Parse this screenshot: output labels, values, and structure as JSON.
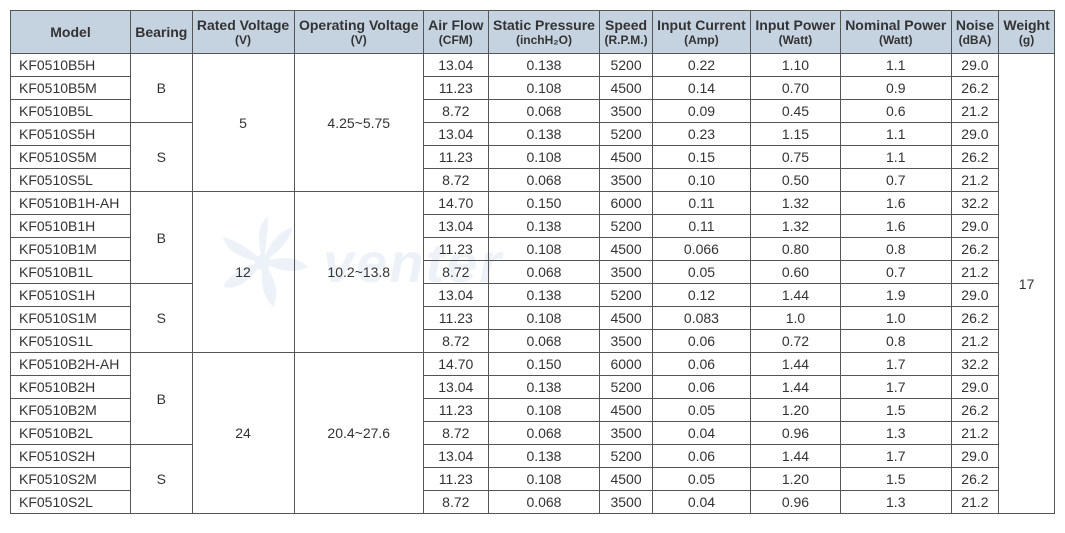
{
  "headers": {
    "model": "Model",
    "bearing": "Bearing",
    "rated_voltage": "Rated Voltage",
    "rated_voltage_unit": "(V)",
    "operating_voltage": "Operating Voltage",
    "operating_voltage_unit": "(V)",
    "air_flow": "Air Flow",
    "air_flow_unit": "(CFM)",
    "static_pressure": "Static Pressure",
    "static_pressure_unit": "(inchH₂O)",
    "speed": "Speed",
    "speed_unit": "(R.P.M.)",
    "input_current": "Input Current",
    "input_current_unit": "(Amp)",
    "input_power": "Input Power",
    "input_power_unit": "(Watt)",
    "nominal_power": "Nominal Power",
    "nominal_power_unit": "(Watt)",
    "noise": "Noise",
    "noise_unit": "(dBA)",
    "weight": "Weight",
    "weight_unit": "(g)"
  },
  "groups": [
    {
      "rated_voltage": "5",
      "operating_voltage": "4.25~5.75",
      "bearings": [
        {
          "bearing": "B",
          "rows": [
            {
              "model": "KF0510B5H",
              "air_flow": "13.04",
              "static_pressure": "0.138",
              "speed": "5200",
              "input_current": "0.22",
              "input_power": "1.10",
              "nominal_power": "1.1",
              "noise": "29.0"
            },
            {
              "model": "KF0510B5M",
              "air_flow": "11.23",
              "static_pressure": "0.108",
              "speed": "4500",
              "input_current": "0.14",
              "input_power": "0.70",
              "nominal_power": "0.9",
              "noise": "26.2"
            },
            {
              "model": "KF0510B5L",
              "air_flow": "8.72",
              "static_pressure": "0.068",
              "speed": "3500",
              "input_current": "0.09",
              "input_power": "0.45",
              "nominal_power": "0.6",
              "noise": "21.2"
            }
          ]
        },
        {
          "bearing": "S",
          "rows": [
            {
              "model": "KF0510S5H",
              "air_flow": "13.04",
              "static_pressure": "0.138",
              "speed": "5200",
              "input_current": "0.23",
              "input_power": "1.15",
              "nominal_power": "1.1",
              "noise": "29.0"
            },
            {
              "model": "KF0510S5M",
              "air_flow": "11.23",
              "static_pressure": "0.108",
              "speed": "4500",
              "input_current": "0.15",
              "input_power": "0.75",
              "nominal_power": "1.1",
              "noise": "26.2"
            },
            {
              "model": "KF0510S5L",
              "air_flow": "8.72",
              "static_pressure": "0.068",
              "speed": "3500",
              "input_current": "0.10",
              "input_power": "0.50",
              "nominal_power": "0.7",
              "noise": "21.2"
            }
          ]
        }
      ]
    },
    {
      "rated_voltage": "12",
      "operating_voltage": "10.2~13.8",
      "bearings": [
        {
          "bearing": "B",
          "rows": [
            {
              "model": "KF0510B1H-AH",
              "air_flow": "14.70",
              "static_pressure": "0.150",
              "speed": "6000",
              "input_current": "0.11",
              "input_power": "1.32",
              "nominal_power": "1.6",
              "noise": "32.2"
            },
            {
              "model": "KF0510B1H",
              "air_flow": "13.04",
              "static_pressure": "0.138",
              "speed": "5200",
              "input_current": "0.11",
              "input_power": "1.32",
              "nominal_power": "1.6",
              "noise": "29.0"
            },
            {
              "model": "KF0510B1M",
              "air_flow": "11.23",
              "static_pressure": "0.108",
              "speed": "4500",
              "input_current": "0.066",
              "input_power": "0.80",
              "nominal_power": "0.8",
              "noise": "26.2"
            },
            {
              "model": "KF0510B1L",
              "air_flow": "8.72",
              "static_pressure": "0.068",
              "speed": "3500",
              "input_current": "0.05",
              "input_power": "0.60",
              "nominal_power": "0.7",
              "noise": "21.2"
            }
          ]
        },
        {
          "bearing": "S",
          "rows": [
            {
              "model": "KF0510S1H",
              "air_flow": "13.04",
              "static_pressure": "0.138",
              "speed": "5200",
              "input_current": "0.12",
              "input_power": "1.44",
              "nominal_power": "1.9",
              "noise": "29.0"
            },
            {
              "model": "KF0510S1M",
              "air_flow": "11.23",
              "static_pressure": "0.108",
              "speed": "4500",
              "input_current": "0.083",
              "input_power": "1.0",
              "nominal_power": "1.0",
              "noise": "26.2"
            },
            {
              "model": "KF0510S1L",
              "air_flow": "8.72",
              "static_pressure": "0.068",
              "speed": "3500",
              "input_current": "0.06",
              "input_power": "0.72",
              "nominal_power": "0.8",
              "noise": "21.2"
            }
          ]
        }
      ]
    },
    {
      "rated_voltage": "24",
      "operating_voltage": "20.4~27.6",
      "bearings": [
        {
          "bearing": "B",
          "rows": [
            {
              "model": "KF0510B2H-AH",
              "air_flow": "14.70",
              "static_pressure": "0.150",
              "speed": "6000",
              "input_current": "0.06",
              "input_power": "1.44",
              "nominal_power": "1.7",
              "noise": "32.2"
            },
            {
              "model": "KF0510B2H",
              "air_flow": "13.04",
              "static_pressure": "0.138",
              "speed": "5200",
              "input_current": "0.06",
              "input_power": "1.44",
              "nominal_power": "1.7",
              "noise": "29.0"
            },
            {
              "model": "KF0510B2M",
              "air_flow": "11.23",
              "static_pressure": "0.108",
              "speed": "4500",
              "input_current": "0.05",
              "input_power": "1.20",
              "nominal_power": "1.5",
              "noise": "26.2"
            },
            {
              "model": "KF0510B2L",
              "air_flow": "8.72",
              "static_pressure": "0.068",
              "speed": "3500",
              "input_current": "0.04",
              "input_power": "0.96",
              "nominal_power": "1.3",
              "noise": "21.2"
            }
          ]
        },
        {
          "bearing": "S",
          "rows": [
            {
              "model": "KF0510S2H",
              "air_flow": "13.04",
              "static_pressure": "0.138",
              "speed": "5200",
              "input_current": "0.06",
              "input_power": "1.44",
              "nominal_power": "1.7",
              "noise": "29.0"
            },
            {
              "model": "KF0510S2M",
              "air_flow": "11.23",
              "static_pressure": "0.108",
              "speed": "4500",
              "input_current": "0.05",
              "input_power": "1.20",
              "nominal_power": "1.5",
              "noise": "26.2"
            },
            {
              "model": "KF0510S2L",
              "air_flow": "8.72",
              "static_pressure": "0.068",
              "speed": "3500",
              "input_current": "0.04",
              "input_power": "0.96",
              "nominal_power": "1.3",
              "noise": "21.2"
            }
          ]
        }
      ]
    }
  ],
  "weight_value": "17",
  "watermark_text": "venter",
  "colors": {
    "header_bg": "#c5d3e0",
    "border": "#555555",
    "text": "#333333"
  }
}
